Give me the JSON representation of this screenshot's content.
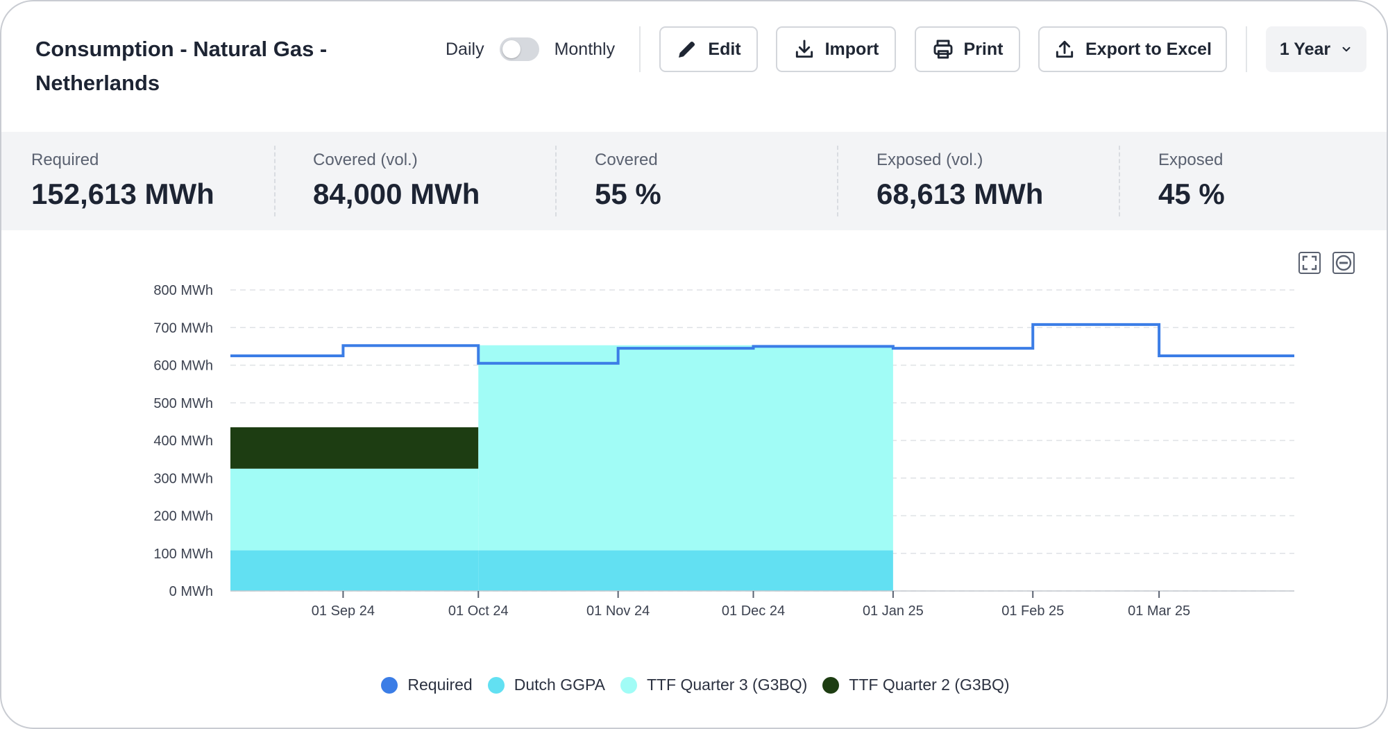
{
  "header": {
    "title": "Consumption - Natural Gas - Netherlands",
    "toggle": {
      "left_label": "Daily",
      "right_label": "Monthly",
      "state": "daily"
    },
    "buttons": {
      "edit": "Edit",
      "import": "Import",
      "print": "Print",
      "export": "Export to Excel",
      "period": "1 Year"
    }
  },
  "stats": [
    {
      "label": "Required",
      "value": "152,613 MWh"
    },
    {
      "label": "Covered (vol.)",
      "value": "84,000 MWh"
    },
    {
      "label": "Covered",
      "value": "55 %"
    },
    {
      "label": "Exposed (vol.)",
      "value": "68,613 MWh"
    },
    {
      "label": "Exposed",
      "value": "45 %"
    }
  ],
  "tools": {
    "fullscreen": "fullscreen-icon",
    "reset": "minus-circle-icon"
  },
  "colors": {
    "required": "#3b7de6",
    "dutch_ggpa": "#62e0f2",
    "ttf_q3": "#a1fcf6",
    "ttf_q2": "#1d3d12"
  },
  "chart_data": {
    "type": "area",
    "x_axis": {
      "type": "date",
      "range": [
        "2024-08-07",
        "2025-03-31"
      ],
      "ticks": [
        "01 Sep 24",
        "01 Oct 24",
        "01 Nov 24",
        "01 Dec 24",
        "01 Jan 25",
        "01 Feb 25",
        "01 Mar 25"
      ],
      "tick_dates": [
        "2024-09-01",
        "2024-10-01",
        "2024-11-01",
        "2024-12-01",
        "2025-01-01",
        "2025-02-01",
        "2025-03-01"
      ]
    },
    "y_axis": {
      "range": [
        0,
        800
      ],
      "ticks": [
        "0 MWh",
        "100 MWh",
        "200 MWh",
        "300 MWh",
        "400 MWh",
        "500 MWh",
        "600 MWh",
        "700 MWh",
        "800 MWh"
      ],
      "tick_values": [
        0,
        100,
        200,
        300,
        400,
        500,
        600,
        700,
        800
      ]
    },
    "grid": true,
    "legend_position": "bottom",
    "series": [
      {
        "name": "Required",
        "kind": "step-line",
        "steps": [
          {
            "start": "2024-08-07",
            "end": "2024-09-01",
            "value": 625
          },
          {
            "start": "2024-09-01",
            "end": "2024-10-01",
            "value": 652
          },
          {
            "start": "2024-10-01",
            "end": "2024-11-01",
            "value": 605
          },
          {
            "start": "2024-11-01",
            "end": "2024-12-01",
            "value": 645
          },
          {
            "start": "2024-12-01",
            "end": "2025-01-01",
            "value": 650
          },
          {
            "start": "2025-01-01",
            "end": "2025-02-01",
            "value": 645
          },
          {
            "start": "2025-02-01",
            "end": "2025-03-01",
            "value": 708
          },
          {
            "start": "2025-03-01",
            "end": "2025-03-31",
            "value": 625
          }
        ]
      },
      {
        "name": "Dutch GGPA",
        "kind": "stacked-step-area",
        "steps": [
          {
            "start": "2024-08-07",
            "end": "2025-01-01",
            "value": 108
          }
        ]
      },
      {
        "name": "TTF Quarter 3 (G3BQ)",
        "kind": "stacked-step-area",
        "steps": [
          {
            "start": "2024-08-07",
            "end": "2024-10-01",
            "value": 217
          },
          {
            "start": "2024-10-01",
            "end": "2025-01-01",
            "value": 545
          }
        ]
      },
      {
        "name": "TTF Quarter 2 (G3BQ)",
        "kind": "stacked-step-area",
        "steps": [
          {
            "start": "2024-08-07",
            "end": "2024-10-01",
            "value": 110
          }
        ]
      }
    ]
  }
}
